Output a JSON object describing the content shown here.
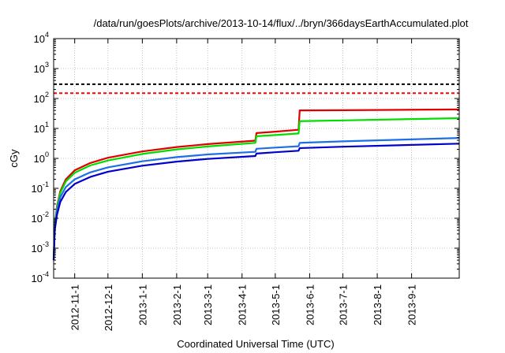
{
  "chart_data": {
    "type": "line",
    "title": "/data/run/goesPlots/archive/2013-10-14/flux/../bryn/366daysEarthAccumulated.plot",
    "xlabel": "Coordinated Universal Time (UTC)",
    "ylabel": "cGy",
    "yscale": "log",
    "xlim": [
      "2012-10-13",
      "2013-10-14"
    ],
    "ylim": [
      0.0001,
      10000
    ],
    "grid": true,
    "legend": "none",
    "x_ticks": [
      "2012-11-1",
      "2012-12-1",
      "2013-1-1",
      "2013-2-1",
      "2013-3-1",
      "2013-4-1",
      "2013-5-1",
      "2013-6-1",
      "2013-7-1",
      "2013-8-1",
      "2013-9-1"
    ],
    "y_ticks": [
      {
        "base": "10",
        "exp": "-4",
        "value": 0.0001
      },
      {
        "base": "10",
        "exp": "-3",
        "value": 0.001
      },
      {
        "base": "10",
        "exp": "-2",
        "value": 0.01
      },
      {
        "base": "10",
        "exp": "-1",
        "value": 0.1
      },
      {
        "base": "10",
        "exp": "0",
        "value": 1
      },
      {
        "base": "10",
        "exp": "1",
        "value": 10
      },
      {
        "base": "10",
        "exp": "2",
        "value": 100
      },
      {
        "base": "10",
        "exp": "3",
        "value": 1000
      },
      {
        "base": "10",
        "exp": "4",
        "value": 10000
      }
    ],
    "reference_lines": [
      {
        "name": "black-threshold",
        "value": 300,
        "color": "#000000",
        "style": "dashed"
      },
      {
        "name": "red-threshold",
        "value": 150,
        "color": "#ff0000",
        "style": "dashed"
      }
    ],
    "series": [
      {
        "name": "red",
        "color": "#e00000",
        "points": [
          [
            "2012-10-13",
            0.0004
          ],
          [
            "2012-10-14",
            0.006
          ],
          [
            "2012-10-16",
            0.025
          ],
          [
            "2012-10-19",
            0.08
          ],
          [
            "2012-10-24",
            0.2
          ],
          [
            "2012-11-1",
            0.4
          ],
          [
            "2012-11-15",
            0.7
          ],
          [
            "2012-12-1",
            1.05
          ],
          [
            "2013-1-1",
            1.7
          ],
          [
            "2013-2-1",
            2.4
          ],
          [
            "2013-3-1",
            3.0
          ],
          [
            "2013-4-13",
            3.9
          ],
          [
            "2013-4-14",
            7.0
          ],
          [
            "2013-5-1",
            7.8
          ],
          [
            "2013-5-22",
            9.0
          ],
          [
            "2013-5-23",
            40
          ],
          [
            "2013-7-1",
            40.5
          ],
          [
            "2013-10-14",
            43
          ]
        ]
      },
      {
        "name": "green",
        "color": "#00dd00",
        "points": [
          [
            "2012-10-13",
            0.0004
          ],
          [
            "2012-10-14",
            0.006
          ],
          [
            "2012-10-16",
            0.022
          ],
          [
            "2012-10-19",
            0.07
          ],
          [
            "2012-10-24",
            0.17
          ],
          [
            "2012-11-1",
            0.33
          ],
          [
            "2012-11-15",
            0.58
          ],
          [
            "2012-12-1",
            0.85
          ],
          [
            "2013-1-1",
            1.4
          ],
          [
            "2013-2-1",
            2.0
          ],
          [
            "2013-3-1",
            2.5
          ],
          [
            "2013-4-13",
            3.3
          ],
          [
            "2013-4-14",
            5.5
          ],
          [
            "2013-5-1",
            6.0
          ],
          [
            "2013-5-22",
            6.8
          ],
          [
            "2013-5-23",
            17.5
          ],
          [
            "2013-7-1",
            18.5
          ],
          [
            "2013-10-14",
            22
          ]
        ]
      },
      {
        "name": "light-blue",
        "color": "#1e6ee6",
        "points": [
          [
            "2012-10-13",
            0.0004
          ],
          [
            "2012-10-14",
            0.005
          ],
          [
            "2012-10-16",
            0.018
          ],
          [
            "2012-10-19",
            0.05
          ],
          [
            "2012-10-24",
            0.11
          ],
          [
            "2012-11-1",
            0.2
          ],
          [
            "2012-11-15",
            0.34
          ],
          [
            "2012-12-1",
            0.5
          ],
          [
            "2013-1-1",
            0.8
          ],
          [
            "2013-2-1",
            1.1
          ],
          [
            "2013-3-1",
            1.35
          ],
          [
            "2013-4-13",
            1.65
          ],
          [
            "2013-4-14",
            2.1
          ],
          [
            "2013-5-1",
            2.3
          ],
          [
            "2013-5-22",
            2.55
          ],
          [
            "2013-5-23",
            3.3
          ],
          [
            "2013-7-1",
            3.7
          ],
          [
            "2013-10-14",
            4.8
          ]
        ]
      },
      {
        "name": "dark-blue",
        "color": "#0000cc",
        "points": [
          [
            "2012-10-13",
            0.0004
          ],
          [
            "2012-10-14",
            0.004
          ],
          [
            "2012-10-16",
            0.013
          ],
          [
            "2012-10-19",
            0.035
          ],
          [
            "2012-10-24",
            0.075
          ],
          [
            "2012-11-1",
            0.14
          ],
          [
            "2012-11-15",
            0.24
          ],
          [
            "2012-12-1",
            0.36
          ],
          [
            "2013-1-1",
            0.57
          ],
          [
            "2013-2-1",
            0.78
          ],
          [
            "2013-3-1",
            0.96
          ],
          [
            "2013-4-13",
            1.2
          ],
          [
            "2013-4-14",
            1.45
          ],
          [
            "2013-5-1",
            1.6
          ],
          [
            "2013-5-22",
            1.8
          ],
          [
            "2013-5-23",
            2.2
          ],
          [
            "2013-7-1",
            2.45
          ],
          [
            "2013-10-14",
            3.1
          ]
        ]
      }
    ]
  }
}
